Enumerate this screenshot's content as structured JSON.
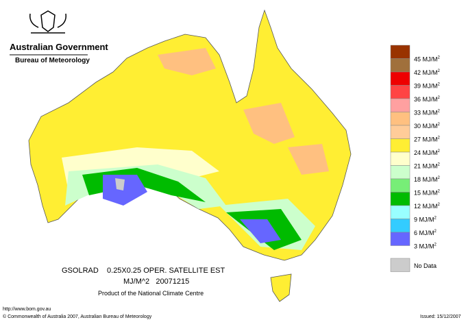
{
  "header": {
    "title": "Australian Government",
    "subtitle": "Bureau of Meteorology"
  },
  "legend": {
    "items": [
      {
        "label": "45 MJ/M",
        "sup": "2",
        "color": "#993300"
      },
      {
        "label": "42 MJ/M",
        "sup": "2",
        "color": "#a0703c"
      },
      {
        "label": "39 MJ/M",
        "sup": "2",
        "color": "#ee0000"
      },
      {
        "label": "36 MJ/M",
        "sup": "2",
        "color": "#ff4444"
      },
      {
        "label": "33 MJ/M",
        "sup": "2",
        "color": "#ffa0a0"
      },
      {
        "label": "30 MJ/M",
        "sup": "2",
        "color": "#ffc080"
      },
      {
        "label": "27 MJ/M",
        "sup": "2",
        "color": "#ffcc99"
      },
      {
        "label": "24 MJ/M",
        "sup": "2",
        "color": "#ffee33"
      },
      {
        "label": "21 MJ/M",
        "sup": "2",
        "color": "#ffffcc"
      },
      {
        "label": "18 MJ/M",
        "sup": "2",
        "color": "#ccffcc"
      },
      {
        "label": "15 MJ/M",
        "sup": "2",
        "color": "#77ee77"
      },
      {
        "label": "12 MJ/M",
        "sup": "2",
        "color": "#00bb00"
      },
      {
        "label": "9 MJ/M",
        "sup": "2",
        "color": "#99ffff"
      },
      {
        "label": "6 MJ/M",
        "sup": "2",
        "color": "#33ccff"
      },
      {
        "label": "3 MJ/M",
        "sup": "2",
        "color": "#6666ff"
      },
      {
        "label": "No Data",
        "color": "#cccccc"
      }
    ]
  },
  "caption": {
    "line1": "GSOLRAD    0.25X0.25 OPER. SATELLITE EST",
    "line2": "MJ/M^2   20071215",
    "line3": "Product of the National Climate Centre"
  },
  "footer": {
    "url": "http://www.bom.gov.au",
    "copyright": "© Commonwealth of Australia 2007, Australian Bureau of Meteorology",
    "issued": "Issued: 15/12/2007"
  }
}
